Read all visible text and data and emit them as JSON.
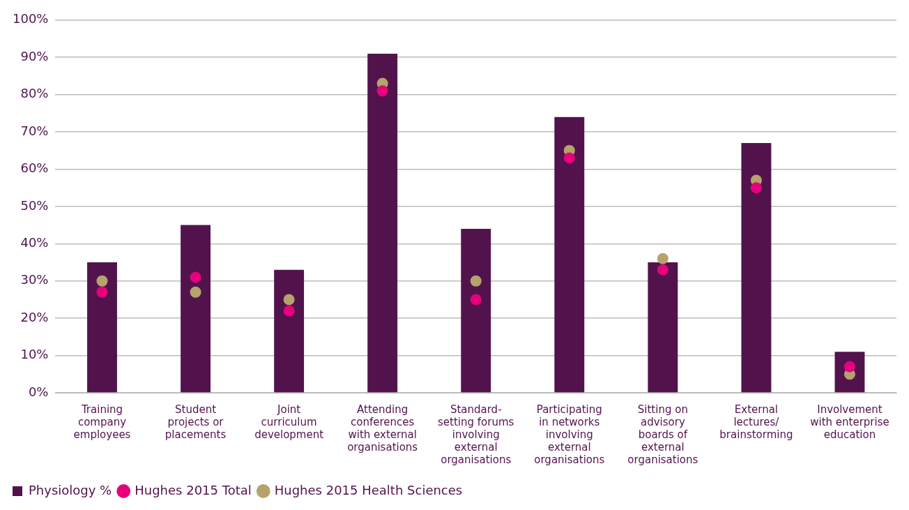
{
  "chart_data": {
    "type": "bar",
    "categories": [
      "Training\ncompany\nemployees",
      "Student\nprojects or\nplacements",
      "Joint\ncurriculum\ndevelopment",
      "Attending\nconferences\nwith external\norganisations",
      "Standard-\nsetting forums\ninvolving\nexternal\norganisations",
      "Participating\nin networks\ninvolving\nexternal\norganisations",
      "Sitting on\nadvisory\nboards of\nexternal\norganisations",
      "External\nlectures/\nbrainstorming",
      "Involvement\nwith enterprise\neducation"
    ],
    "series": [
      {
        "name": "Physiology %",
        "color": "#52134d",
        "values": [
          35,
          45,
          33,
          91,
          44,
          74,
          35,
          67,
          11
        ]
      },
      {
        "name": "Hughes 2015 Total",
        "type": "scatter",
        "color": "#e6007e",
        "values": [
          27,
          31,
          22,
          81,
          25,
          63,
          33,
          55,
          7
        ]
      },
      {
        "name": "Hughes 2015 Health Sciences",
        "type": "scatter",
        "color": "#b5a36b",
        "values": [
          30,
          27,
          25,
          83,
          30,
          65,
          36,
          57,
          5
        ]
      }
    ],
    "ylim": [
      0,
      100
    ],
    "yticks": [
      {
        "value": 0,
        "label": "0%"
      },
      {
        "value": 10,
        "label": "10%"
      },
      {
        "value": 20,
        "label": "20%"
      },
      {
        "value": 30,
        "label": "30%"
      },
      {
        "value": 40,
        "label": "40%"
      },
      {
        "value": 50,
        "label": "50%"
      },
      {
        "value": 60,
        "label": "60%"
      },
      {
        "value": 70,
        "label": "70%"
      },
      {
        "value": 80,
        "label": "80%"
      },
      {
        "value": 90,
        "label": "90%"
      },
      {
        "value": 100,
        "label": "100%"
      }
    ],
    "grid": "y",
    "legend": "bottom left",
    "marker": "circle"
  }
}
